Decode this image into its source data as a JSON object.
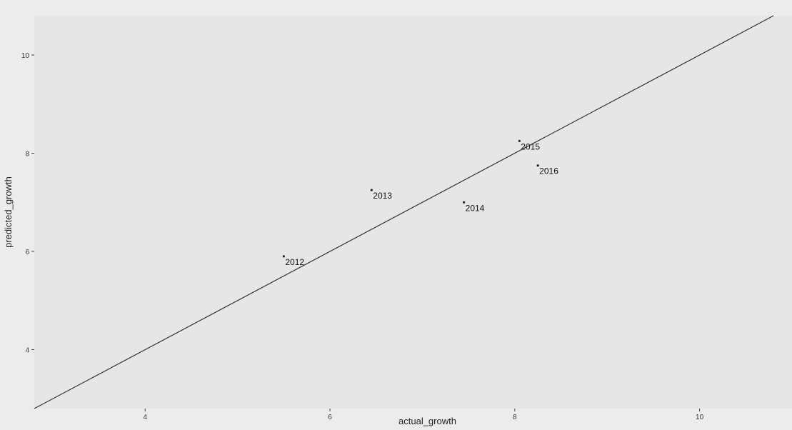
{
  "chart_data": {
    "type": "scatter",
    "title": "",
    "xlabel": "actual_growth",
    "ylabel": "predicted_growth",
    "xlim": [
      2.8,
      11.0
    ],
    "ylim": [
      2.8,
      10.8
    ],
    "x_ticks": [
      "4",
      "6",
      "8",
      "10"
    ],
    "y_ticks": [
      "4",
      "6",
      "8",
      "10"
    ],
    "grid": false,
    "points": [
      {
        "label": "2012",
        "x": 5.5,
        "y": 5.9
      },
      {
        "label": "2013",
        "x": 6.45,
        "y": 7.25
      },
      {
        "label": "2014",
        "x": 7.45,
        "y": 7.0
      },
      {
        "label": "2015",
        "x": 8.05,
        "y": 8.25
      },
      {
        "label": "2016",
        "x": 8.25,
        "y": 7.75
      }
    ],
    "reference_line": {
      "slope": 1,
      "intercept": 0
    },
    "colors": {
      "panel": "#e6e6e6",
      "point": "#222222",
      "line": "#333333"
    }
  }
}
